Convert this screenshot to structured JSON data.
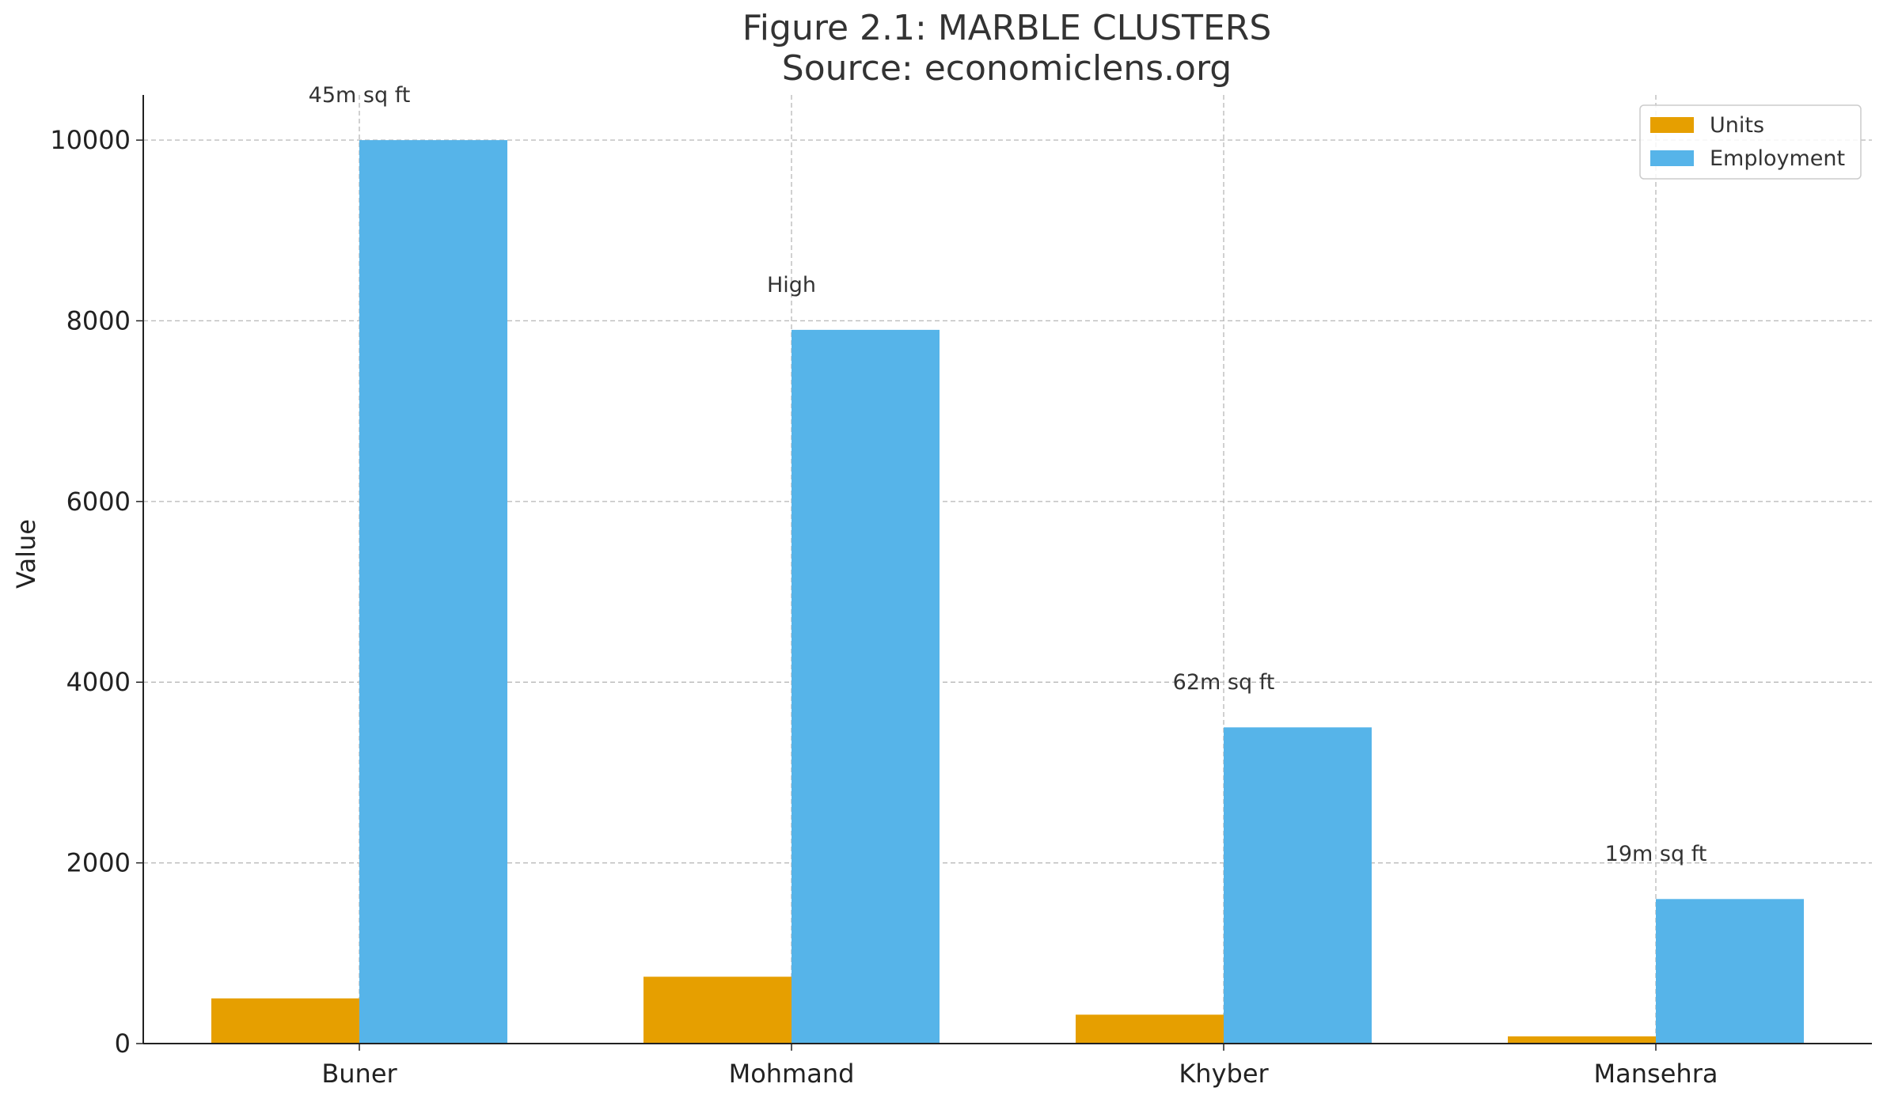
{
  "chart_data": {
    "type": "bar",
    "title_line1": "Figure 2.1: MARBLE CLUSTERS",
    "title_line2": "Source: economiclens.org",
    "xlabel": "",
    "ylabel": "Value",
    "ylim": [
      0,
      10500
    ],
    "yticks": [
      0,
      2000,
      4000,
      6000,
      8000,
      10000
    ],
    "grid": true,
    "legend_position": "top-right",
    "categories": [
      "Buner",
      "Mohmand",
      "Khyber",
      "Mansehra"
    ],
    "series": [
      {
        "name": "Units",
        "color": "#E69F00",
        "values": [
          500,
          740,
          320,
          80
        ]
      },
      {
        "name": "Employment",
        "color": "#56B4E9",
        "values": [
          10000,
          7900,
          3500,
          1600
        ]
      }
    ],
    "annotations": [
      {
        "category": "Buner",
        "text": "45m sq ft",
        "y": 10500
      },
      {
        "category": "Mohmand",
        "text": "High",
        "y": 8400
      },
      {
        "category": "Khyber",
        "text": "62m sq ft",
        "y": 4000
      },
      {
        "category": "Mansehra",
        "text": "19m sq ft",
        "y": 2100
      }
    ]
  }
}
